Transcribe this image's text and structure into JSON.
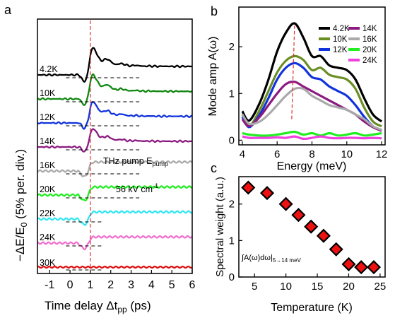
{
  "chart_data": [
    {
      "panel": "a",
      "type": "line",
      "xlabel": "Time delay Δt",
      "xlabel_sub": "pp",
      "xlabel_unit": " (ps)",
      "ylabel": "−ΔE/E",
      "ylabel_sub": "0",
      "ylabel_unit": " (5% per. div.)",
      "xlim": [
        -1.6,
        6.0
      ],
      "xticks": [
        -1,
        0,
        1,
        2,
        3,
        4,
        5,
        6
      ],
      "annotation_1": "THz pump E",
      "annotation_1_sub": "pump",
      "annotation_2": "56 kV cm",
      "annotation_2_sup": "-1",
      "marker_line_x": 1.0,
      "series": [
        {
          "name": "4.2K",
          "color": "#000000",
          "baseline": 0
        },
        {
          "name": "10K",
          "color": "#118811",
          "baseline": 1
        },
        {
          "name": "12K",
          "color": "#1133dd",
          "baseline": 2
        },
        {
          "name": "14K",
          "color": "#8c1a80",
          "baseline": 3
        },
        {
          "name": "16K",
          "color": "#aaaaaa",
          "baseline": 4
        },
        {
          "name": "20K",
          "color": "#22ee22",
          "baseline": 5
        },
        {
          "name": "22K",
          "color": "#33e6f0",
          "baseline": 6
        },
        {
          "name": "24K",
          "color": "#f070d0",
          "baseline": 7
        },
        {
          "name": "30K",
          "color": "#dd1111",
          "baseline": 8
        }
      ]
    },
    {
      "panel": "b",
      "type": "line",
      "xlabel": "Energy (meV)",
      "ylabel": "Mode amp A(ω)",
      "xlim": [
        3.8,
        12.2
      ],
      "ylim": [
        -0.1,
        2.85
      ],
      "xticks": [
        4,
        6,
        8,
        10,
        12
      ],
      "yticks": [
        0,
        1,
        2
      ],
      "x": [
        4.0,
        4.4,
        5.0,
        5.5,
        6.0,
        6.5,
        7.0,
        7.5,
        8.0,
        8.5,
        9.0,
        9.5,
        10.0,
        10.5,
        11.0,
        11.5,
        12.0
      ],
      "series": [
        {
          "name": "4.2K",
          "color": "#000000",
          "values": [
            0.62,
            0.42,
            0.8,
            1.3,
            1.9,
            2.3,
            2.5,
            2.2,
            1.8,
            1.8,
            1.6,
            1.55,
            1.5,
            1.3,
            0.9,
            0.55,
            0.4
          ]
        },
        {
          "name": "10K",
          "color": "#6b8e23",
          "values": [
            0.55,
            0.3,
            0.65,
            1.05,
            1.45,
            1.7,
            1.8,
            1.72,
            1.5,
            1.55,
            1.4,
            1.35,
            1.3,
            1.1,
            0.7,
            0.4,
            0.3
          ]
        },
        {
          "name": "12K",
          "color": "#1133dd",
          "values": [
            0.5,
            0.28,
            0.55,
            0.9,
            1.3,
            1.55,
            1.65,
            1.55,
            1.35,
            1.3,
            1.15,
            1.05,
            0.95,
            0.75,
            0.5,
            0.3,
            0.22
          ]
        },
        {
          "name": "14K",
          "color": "#8c1a80",
          "values": [
            0.45,
            0.3,
            0.5,
            0.75,
            1.0,
            1.2,
            1.25,
            1.15,
            1.05,
            0.95,
            0.85,
            0.75,
            0.65,
            0.55,
            0.4,
            0.28,
            0.2
          ]
        },
        {
          "name": "16K",
          "color": "#aaaaaa",
          "values": [
            0.55,
            0.35,
            0.4,
            0.55,
            0.75,
            0.95,
            1.1,
            1.1,
            0.95,
            0.85,
            0.75,
            0.7,
            0.65,
            0.55,
            0.45,
            0.3,
            0.22
          ]
        },
        {
          "name": "20K",
          "color": "#22ee22",
          "values": [
            0.15,
            0.12,
            0.1,
            0.1,
            0.12,
            0.15,
            0.18,
            0.12,
            0.15,
            0.1,
            0.15,
            0.1,
            0.12,
            0.15,
            0.1,
            0.12,
            0.15
          ]
        },
        {
          "name": "24K",
          "color": "#f040e0",
          "values": [
            0.08,
            0.05,
            0.05,
            0.05,
            0.06,
            0.05,
            0.08,
            0.03,
            0.05,
            0.08,
            0.05,
            0.04,
            0.05,
            0.05,
            0.04,
            0.05,
            0.04
          ]
        }
      ],
      "marker_line_x": 7.0,
      "legend": "top-right"
    },
    {
      "panel": "c",
      "type": "scatter",
      "xlabel": "Temperature (K)",
      "ylabel": "Spectral weight (a.u.)",
      "xlim": [
        2.5,
        25.8
      ],
      "ylim": [
        0,
        2.75
      ],
      "xticks": [
        5,
        10,
        15,
        20,
        25
      ],
      "yticks": [
        0,
        1,
        2
      ],
      "x": [
        4,
        7,
        10,
        12,
        14,
        16,
        18,
        20,
        22,
        24
      ],
      "y": [
        2.45,
        2.3,
        2.0,
        1.7,
        1.38,
        1.13,
        0.76,
        0.35,
        0.27,
        0.27
      ],
      "marker_fill": "#ee1111",
      "marker_edge": "#000000",
      "annotation": "∫A(ω)dω|",
      "annotation_sub": "5→14 meV"
    }
  ],
  "panel_labels": {
    "a": "a",
    "b": "b",
    "c": "c"
  }
}
